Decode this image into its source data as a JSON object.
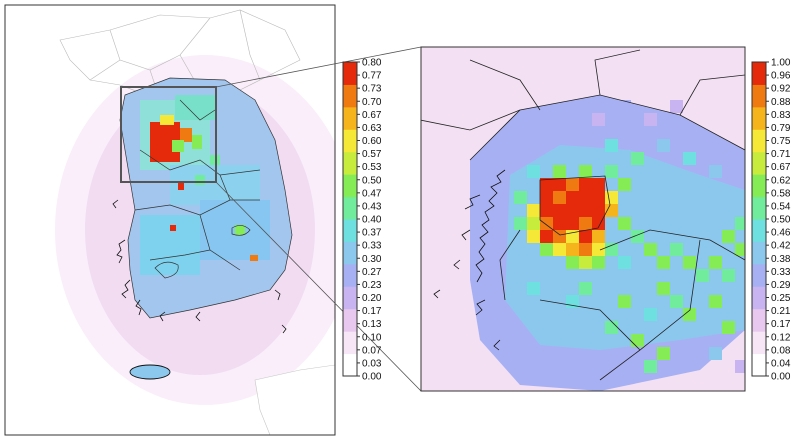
{
  "figure": {
    "left_map": {
      "name": "korea-overview-map"
    },
    "right_map": {
      "name": "seoul-region-zoom-map"
    }
  },
  "colorbar_left": {
    "ticks": [
      "0.80",
      "0.77",
      "0.73",
      "0.70",
      "0.67",
      "0.63",
      "0.60",
      "0.57",
      "0.53",
      "0.50",
      "0.47",
      "0.43",
      "0.40",
      "0.37",
      "0.33",
      "0.30",
      "0.27",
      "0.23",
      "0.20",
      "0.17",
      "0.13",
      "0.10",
      "0.07",
      "0.03",
      "0.00"
    ]
  },
  "colorbar_right": {
    "ticks": [
      "1.00",
      "0.96",
      "0.92",
      "0.88",
      "0.83",
      "0.79",
      "0.75",
      "0.71",
      "0.67",
      "0.62",
      "0.58",
      "0.54",
      "0.50",
      "0.46",
      "0.42",
      "0.38",
      "0.33",
      "0.29",
      "0.25",
      "0.21",
      "0.17",
      "0.12",
      "0.08",
      "0.04",
      "0.00"
    ]
  },
  "colorscale": [
    "#ffffff",
    "#f6e6f6",
    "#e8c8ee",
    "#c8b4f0",
    "#a8b0f4",
    "#8cc8ee",
    "#6ee0e0",
    "#70ec9c",
    "#86ec56",
    "#c8ec3c",
    "#f6e836",
    "#f6b41c",
    "#f07a12",
    "#e42a0a"
  ]
}
